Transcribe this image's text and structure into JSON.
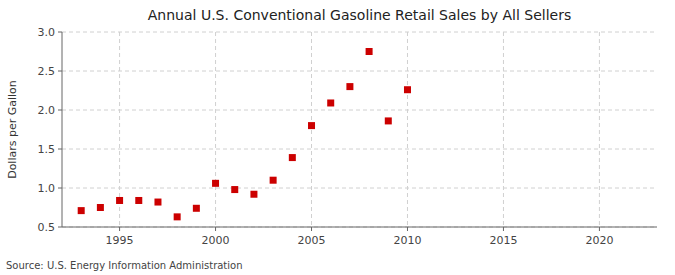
{
  "chart_data": {
    "type": "scatter",
    "title": "Annual U.S. Conventional Gasoline Retail Sales by All Sellers",
    "ylabel": "Dollars per Gallon",
    "annotations": [
      "Source: U.S. Energy Information Administration"
    ],
    "x": [
      1993,
      1994,
      1995,
      1996,
      1997,
      1998,
      1999,
      2000,
      2001,
      2002,
      2003,
      2004,
      2005,
      2006,
      2007,
      2008,
      2009,
      2010
    ],
    "values": [
      0.71,
      0.75,
      0.84,
      0.84,
      0.82,
      0.63,
      0.74,
      1.06,
      0.98,
      0.92,
      1.1,
      1.39,
      1.8,
      2.09,
      2.3,
      2.75,
      1.86,
      2.26
    ],
    "color": "#cc0000",
    "marker": "square",
    "xlim": [
      1992,
      2023
    ],
    "ylim": [
      0.5,
      3.0
    ],
    "xticks": [
      1995,
      2000,
      2005,
      2010,
      2015,
      2020
    ],
    "yticks": [
      0.5,
      {
        "value": 1.0,
        "label": "1.0"
      },
      1.5,
      {
        "value": 2.0,
        "label": "2.0"
      },
      2.5,
      {
        "value": 3.0,
        "label": "3.0"
      }
    ],
    "grid": true
  }
}
